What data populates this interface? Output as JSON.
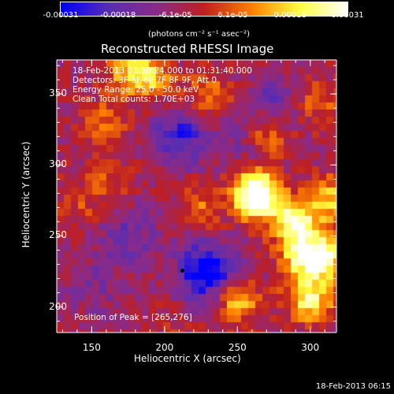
{
  "colorbar": {
    "ticks": [
      "-0.00031",
      "-0.00018",
      "-6.1e-05",
      "6.1e-05",
      "0.00018",
      "0.00031"
    ],
    "units_text": "(photons cm",
    "units_full": "(photons cm⁻² s⁻¹ asec⁻²)",
    "colors": [
      "#0000ff",
      "#5a2eb2",
      "#8a2b8a",
      "#c02020",
      "#ff8000",
      "#ffff40",
      "#ffffff"
    ]
  },
  "chart_data": {
    "type": "heatmap",
    "title": "Reconstructed RHESSI Image",
    "xlabel": "Heliocentric X (arcsec)",
    "ylabel": "Heliocentric Y (arcsec)",
    "xlim": [
      126,
      318
    ],
    "ylim": [
      182,
      374
    ],
    "xticks": [
      "150",
      "200",
      "250",
      "300"
    ],
    "yticks": [
      "200",
      "250",
      "300",
      "350"
    ],
    "zlim": [
      -0.00031,
      0.00031
    ],
    "annotations": {
      "time": "18-Feb-2013 01:30:24.000 to 01:31:40.000",
      "detectors": "Detectors: 3F 5F 6F 7F 8F 9F, Att 0",
      "energy": "Energy Range: 25.0 - 50.0 keV",
      "method": "Clean     Total counts: 1.70E+03",
      "peak": "Position of Peak = [265,276]"
    },
    "peak_position": [
      265,
      276
    ],
    "hotspots": [
      {
        "x": 290,
        "y": 260,
        "value": 0.00031
      },
      {
        "x": 265,
        "y": 276,
        "value": 0.00031
      },
      {
        "x": 310,
        "y": 235,
        "value": 0.00028
      },
      {
        "x": 295,
        "y": 235,
        "value": 0.00025
      },
      {
        "x": 250,
        "y": 205,
        "value": 0.00022
      },
      {
        "x": 260,
        "y": 285,
        "value": 0.00024
      },
      {
        "x": 190,
        "y": 360,
        "value": 0.0002
      },
      {
        "x": 175,
        "y": 368,
        "value": 0.00018
      },
      {
        "x": 230,
        "y": 350,
        "value": 0.00014
      },
      {
        "x": 270,
        "y": 320,
        "value": 0.00017
      },
      {
        "x": 305,
        "y": 345,
        "value": 0.00012
      },
      {
        "x": 160,
        "y": 330,
        "value": 0.00012
      },
      {
        "x": 160,
        "y": 290,
        "value": 0.0001
      },
      {
        "x": 140,
        "y": 270,
        "value": 8e-05
      },
      {
        "x": 225,
        "y": 270,
        "value": 0.00012
      },
      {
        "x": 300,
        "y": 205,
        "value": 0.00027
      },
      {
        "x": 315,
        "y": 275,
        "value": 0.00022
      },
      {
        "x": 200,
        "y": 185,
        "value": 4e-05
      }
    ],
    "coldspots": [
      {
        "x": 230,
        "y": 225,
        "value": -0.00031
      },
      {
        "x": 210,
        "y": 320,
        "value": -0.0002
      },
      {
        "x": 175,
        "y": 250,
        "value": -0.00012
      },
      {
        "x": 150,
        "y": 215,
        "value": -8e-05
      },
      {
        "x": 275,
        "y": 345,
        "value": -0.00012
      },
      {
        "x": 255,
        "y": 310,
        "value": -0.0001
      }
    ]
  },
  "footer": {
    "timestamp": "18-Feb-2013 06:15"
  }
}
